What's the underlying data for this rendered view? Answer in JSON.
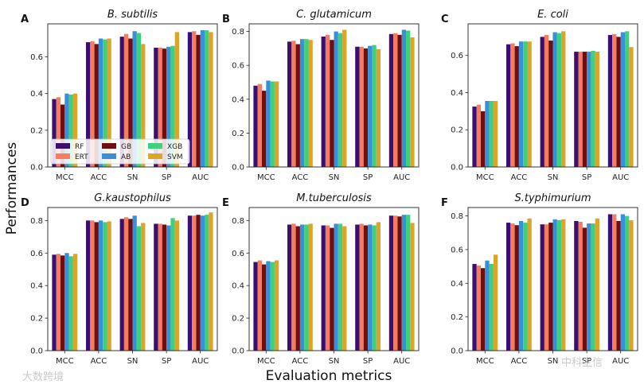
{
  "chart_data": {
    "type": "bar",
    "ylabel": "Performances",
    "xlabel": "Evaluation metrics",
    "categories": [
      "MCC",
      "ACC",
      "SN",
      "SP",
      "AUC"
    ],
    "legend": {
      "placement": "lower-left of panel A",
      "entries": [
        {
          "name": "RF",
          "color": "#3b0f70"
        },
        {
          "name": "ERT",
          "color": "#f47c63"
        },
        {
          "name": "GB",
          "color": "#6e0e0e"
        },
        {
          "name": "AB",
          "color": "#3a8fd9"
        },
        {
          "name": "XGB",
          "color": "#3ecf7f"
        },
        {
          "name": "SVM",
          "color": "#dba52a"
        }
      ]
    },
    "panels": [
      {
        "label": "A",
        "title": "B. subtilis",
        "ylim": [
          0,
          0.78
        ],
        "yticks": [
          0.0,
          0.2,
          0.4,
          0.6
        ],
        "series": [
          {
            "name": "RF",
            "values": [
              0.37,
              0.68,
              0.71,
              0.65,
              0.735
            ]
          },
          {
            "name": "ERT",
            "values": [
              0.38,
              0.685,
              0.725,
              0.65,
              0.74
            ]
          },
          {
            "name": "GB",
            "values": [
              0.34,
              0.67,
              0.7,
              0.645,
              0.72
            ]
          },
          {
            "name": "AB",
            "values": [
              0.4,
              0.7,
              0.74,
              0.655,
              0.745
            ]
          },
          {
            "name": "XGB",
            "values": [
              0.395,
              0.695,
              0.73,
              0.66,
              0.745
            ]
          },
          {
            "name": "SVM",
            "values": [
              0.4,
              0.7,
              0.67,
              0.735,
              0.735
            ]
          }
        ]
      },
      {
        "label": "B",
        "title": "C. glutamicum",
        "ylim": [
          0,
          0.845
        ],
        "yticks": [
          0.0,
          0.2,
          0.4,
          0.6,
          0.8
        ],
        "series": [
          {
            "name": "RF",
            "values": [
              0.48,
              0.74,
              0.77,
              0.71,
              0.785
            ]
          },
          {
            "name": "ERT",
            "values": [
              0.49,
              0.745,
              0.78,
              0.71,
              0.79
            ]
          },
          {
            "name": "GB",
            "values": [
              0.45,
              0.725,
              0.75,
              0.7,
              0.78
            ]
          },
          {
            "name": "AB",
            "values": [
              0.51,
              0.755,
              0.8,
              0.715,
              0.81
            ]
          },
          {
            "name": "XGB",
            "values": [
              0.505,
              0.755,
              0.79,
              0.72,
              0.805
            ]
          },
          {
            "name": "SVM",
            "values": [
              0.505,
              0.75,
              0.81,
              0.695,
              0.765
            ]
          }
        ]
      },
      {
        "label": "C",
        "title": "E. coli",
        "ylim": [
          0,
          0.77
        ],
        "yticks": [
          0.0,
          0.2,
          0.4,
          0.6
        ],
        "series": [
          {
            "name": "RF",
            "values": [
              0.325,
              0.66,
              0.7,
              0.62,
              0.71
            ]
          },
          {
            "name": "ERT",
            "values": [
              0.335,
              0.665,
              0.71,
              0.62,
              0.715
            ]
          },
          {
            "name": "GB",
            "values": [
              0.3,
              0.65,
              0.68,
              0.62,
              0.7
            ]
          },
          {
            "name": "AB",
            "values": [
              0.355,
              0.675,
              0.725,
              0.62,
              0.725
            ]
          },
          {
            "name": "XGB",
            "values": [
              0.355,
              0.675,
              0.72,
              0.625,
              0.73
            ]
          },
          {
            "name": "SVM",
            "values": [
              0.355,
              0.675,
              0.73,
              0.62,
              0.645
            ]
          }
        ]
      },
      {
        "label": "D",
        "title": "G.kaustophilus",
        "ylim": [
          0,
          0.88
        ],
        "yticks": [
          0.0,
          0.2,
          0.4,
          0.6,
          0.8
        ],
        "series": [
          {
            "name": "RF",
            "values": [
              0.59,
              0.8,
              0.81,
              0.78,
              0.83
            ]
          },
          {
            "name": "ERT",
            "values": [
              0.595,
              0.8,
              0.82,
              0.78,
              0.83
            ]
          },
          {
            "name": "GB",
            "values": [
              0.585,
              0.79,
              0.81,
              0.775,
              0.835
            ]
          },
          {
            "name": "AB",
            "values": [
              0.6,
              0.8,
              0.83,
              0.77,
              0.83
            ]
          },
          {
            "name": "XGB",
            "values": [
              0.58,
              0.79,
              0.765,
              0.815,
              0.835
            ]
          },
          {
            "name": "SVM",
            "values": [
              0.595,
              0.795,
              0.785,
              0.8,
              0.85
            ]
          }
        ]
      },
      {
        "label": "E",
        "title": "M.tuberculosis",
        "ylim": [
          0,
          0.88
        ],
        "yticks": [
          0.0,
          0.2,
          0.4,
          0.6,
          0.8
        ],
        "series": [
          {
            "name": "RF",
            "values": [
              0.545,
              0.775,
              0.77,
              0.775,
              0.83
            ]
          },
          {
            "name": "ERT",
            "values": [
              0.555,
              0.78,
              0.77,
              0.78,
              0.83
            ]
          },
          {
            "name": "GB",
            "values": [
              0.53,
              0.765,
              0.755,
              0.77,
              0.825
            ]
          },
          {
            "name": "AB",
            "values": [
              0.55,
              0.775,
              0.78,
              0.775,
              0.835
            ]
          },
          {
            "name": "XGB",
            "values": [
              0.545,
              0.775,
              0.78,
              0.77,
              0.835
            ]
          },
          {
            "name": "SVM",
            "values": [
              0.555,
              0.78,
              0.765,
              0.79,
              0.785
            ]
          }
        ]
      },
      {
        "label": "F",
        "title": "S.typhimurium",
        "ylim": [
          0,
          0.85
        ],
        "yticks": [
          0.0,
          0.2,
          0.4,
          0.6,
          0.8
        ],
        "series": [
          {
            "name": "RF",
            "values": [
              0.515,
              0.76,
              0.75,
              0.77,
              0.81
            ]
          },
          {
            "name": "ERT",
            "values": [
              0.505,
              0.755,
              0.75,
              0.765,
              0.81
            ]
          },
          {
            "name": "GB",
            "values": [
              0.49,
              0.745,
              0.76,
              0.73,
              0.77
            ]
          },
          {
            "name": "AB",
            "values": [
              0.535,
              0.77,
              0.78,
              0.755,
              0.81
            ]
          },
          {
            "name": "XGB",
            "values": [
              0.515,
              0.76,
              0.775,
              0.755,
              0.8
            ]
          },
          {
            "name": "SVM",
            "values": [
              0.57,
              0.785,
              0.78,
              0.785,
              0.775
            ]
          }
        ]
      }
    ]
  },
  "watermarks": {
    "left": "大数跨境",
    "right": "中科生信"
  }
}
